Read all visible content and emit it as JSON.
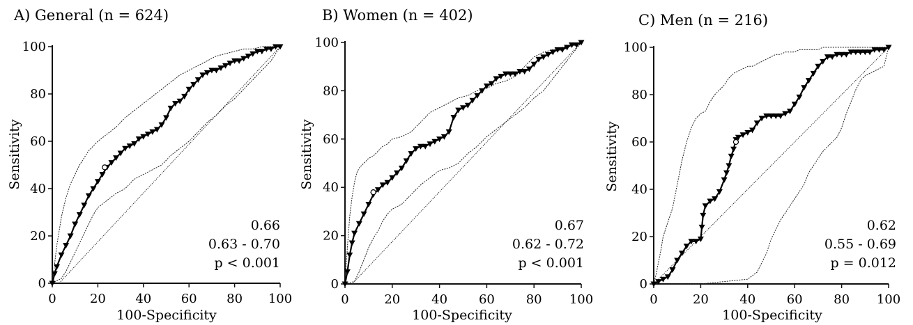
{
  "chart_data": [
    {
      "type": "line",
      "title": "A) General (n = 624)",
      "xlabel": "100-Specificity",
      "ylabel": "Sensitivity",
      "xlim": [
        0,
        100
      ],
      "ylim": [
        0,
        100
      ],
      "xticks": [
        "0",
        "20",
        "40",
        "60",
        "80",
        "100"
      ],
      "yticks": [
        "0",
        "20",
        "40",
        "60",
        "80",
        "100"
      ],
      "annotations": [
        "0.66",
        "0.63 - 0.70",
        "p < 0.001"
      ],
      "series": [
        {
          "role": "roc",
          "x": [
            0,
            1,
            2,
            4,
            6,
            8,
            10,
            12,
            14,
            16,
            18,
            20,
            22,
            24,
            26,
            28,
            30,
            32,
            34,
            36,
            38,
            40,
            42,
            44,
            46,
            48,
            50,
            52,
            54,
            56,
            58,
            60,
            62,
            64,
            66,
            68,
            70,
            72,
            74,
            76,
            78,
            80,
            82,
            84,
            86,
            88,
            90,
            92,
            94,
            96,
            98,
            100
          ],
          "y": [
            0,
            4,
            7,
            12,
            16,
            20,
            25,
            29,
            33,
            37,
            40,
            43,
            46,
            49,
            51,
            53,
            55,
            57,
            58,
            59,
            61,
            62,
            63,
            64,
            65,
            67,
            70,
            74,
            76,
            77,
            79,
            82,
            84,
            86,
            88,
            89,
            90,
            90,
            91,
            92,
            93,
            94,
            94,
            95,
            96,
            97,
            98,
            98,
            99,
            99,
            100,
            100
          ]
        },
        {
          "role": "upper-ci",
          "x": [
            0,
            1,
            2,
            3,
            4,
            5,
            6,
            8,
            10,
            12,
            14,
            16,
            18,
            20,
            24,
            28,
            32,
            36,
            40,
            44,
            48,
            52,
            56,
            60,
            64,
            68,
            72,
            76,
            80,
            84,
            88,
            92,
            96,
            100
          ],
          "y": [
            0,
            8,
            16,
            22,
            28,
            32,
            36,
            42,
            46,
            50,
            53,
            56,
            58,
            60,
            63,
            66,
            70,
            73,
            76,
            79,
            82,
            85,
            88,
            90,
            92,
            94,
            96,
            97,
            98,
            99,
            99,
            100,
            100,
            100
          ]
        },
        {
          "role": "lower-ci",
          "x": [
            0,
            4,
            6,
            8,
            10,
            12,
            14,
            16,
            18,
            20,
            24,
            28,
            32,
            36,
            40,
            44,
            48,
            52,
            56,
            60,
            64,
            68,
            72,
            76,
            80,
            84,
            88,
            92,
            96,
            100
          ],
          "y": [
            0,
            2,
            5,
            9,
            13,
            17,
            21,
            25,
            29,
            32,
            35,
            38,
            40,
            44,
            46,
            48,
            50,
            54,
            57,
            60,
            64,
            68,
            71,
            75,
            78,
            82,
            86,
            90,
            94,
            100
          ]
        },
        {
          "role": "reference",
          "x": [
            3,
            100
          ],
          "y": [
            0,
            100
          ]
        }
      ],
      "cutoff_marker": {
        "x": 23,
        "y": 49
      }
    },
    {
      "type": "line",
      "title": "B) Women (n = 402)",
      "xlabel": "100-Specificity",
      "ylabel": "Sensitivity",
      "xlim": [
        0,
        100
      ],
      "ylim": [
        0,
        100
      ],
      "xticks": [
        "0",
        "20",
        "40",
        "60",
        "80",
        "100"
      ],
      "yticks": [
        "0",
        "20",
        "40",
        "60",
        "80",
        "100"
      ],
      "annotations": [
        "0.67",
        "0.62 - 0.72",
        "p < 0.001"
      ],
      "series": [
        {
          "role": "roc",
          "x": [
            0,
            1,
            2,
            3,
            4,
            6,
            8,
            10,
            12,
            14,
            16,
            18,
            20,
            22,
            24,
            26,
            28,
            30,
            32,
            34,
            36,
            38,
            40,
            42,
            44,
            46,
            48,
            50,
            52,
            54,
            56,
            58,
            60,
            62,
            64,
            66,
            68,
            70,
            72,
            74,
            76,
            78,
            80,
            82,
            84,
            86,
            88,
            90,
            92,
            94,
            96,
            98,
            100
          ],
          "y": [
            0,
            5,
            12,
            17,
            21,
            25,
            29,
            33,
            37,
            39,
            41,
            42,
            44,
            46,
            48,
            51,
            54,
            56,
            57,
            57,
            58,
            59,
            60,
            61,
            63,
            69,
            72,
            73,
            74,
            76,
            78,
            80,
            82,
            83,
            85,
            86,
            87,
            87,
            87,
            88,
            88,
            89,
            91,
            93,
            94,
            95,
            96,
            97,
            97,
            98,
            99,
            99,
            100
          ]
        },
        {
          "role": "upper-ci",
          "x": [
            0,
            1,
            2,
            3,
            4,
            5,
            6,
            8,
            10,
            12,
            14,
            16,
            18,
            20,
            24,
            28,
            32,
            36,
            40,
            44,
            48,
            52,
            56,
            60,
            64,
            68,
            72,
            76,
            80,
            84,
            88,
            92,
            96,
            100
          ],
          "y": [
            0,
            15,
            28,
            36,
            42,
            46,
            48,
            50,
            52,
            53,
            55,
            57,
            58,
            60,
            61,
            63,
            67,
            71,
            73,
            75,
            77,
            78,
            80,
            81,
            83,
            84,
            86,
            90,
            94,
            96,
            97,
            98,
            99,
            100
          ]
        },
        {
          "role": "lower-ci",
          "x": [
            0,
            4,
            6,
            8,
            10,
            12,
            14,
            16,
            18,
            20,
            24,
            28,
            32,
            36,
            40,
            44,
            48,
            52,
            56,
            60,
            64,
            68,
            72,
            76,
            80,
            84,
            88,
            92,
            96,
            100
          ],
          "y": [
            0,
            1,
            5,
            10,
            15,
            19,
            22,
            26,
            29,
            31,
            33,
            37,
            41,
            44,
            47,
            48,
            50,
            54,
            57,
            61,
            64,
            67,
            70,
            73,
            77,
            80,
            85,
            90,
            95,
            100
          ]
        },
        {
          "role": "reference",
          "x": [
            3,
            100
          ],
          "y": [
            0,
            100
          ]
        }
      ],
      "cutoff_marker": {
        "x": 12,
        "y": 38
      }
    },
    {
      "type": "line",
      "title": "C) Men (n = 216)",
      "xlabel": "100-Specificity",
      "ylabel": "Sensitivity",
      "xlim": [
        0,
        100
      ],
      "ylim": [
        0,
        100
      ],
      "xticks": [
        "0",
        "20",
        "40",
        "60",
        "80",
        "100"
      ],
      "yticks": [
        "0",
        "20",
        "40",
        "60",
        "80",
        "100"
      ],
      "annotations": [
        "0.62",
        "0.55 - 0.69",
        "p = 0.012"
      ],
      "series": [
        {
          "role": "roc",
          "x": [
            0,
            2,
            4,
            6,
            8,
            10,
            12,
            14,
            16,
            18,
            20,
            20.5,
            21,
            22,
            24,
            26,
            28,
            30,
            31,
            32,
            33,
            34,
            35,
            36,
            38,
            40,
            42,
            44,
            46,
            48,
            50,
            52,
            54,
            56,
            58,
            60,
            62,
            64,
            66,
            68,
            70,
            72,
            74,
            76,
            78,
            80,
            82,
            84,
            86,
            88,
            90,
            92,
            94,
            96,
            98,
            100
          ],
          "y": [
            0,
            1,
            2,
            3,
            6,
            10,
            13,
            16,
            18,
            18,
            19,
            24,
            29,
            33,
            35,
            36,
            39,
            44,
            47,
            50,
            54,
            57,
            61,
            62,
            63,
            64,
            65,
            68,
            70,
            71,
            71,
            71,
            71,
            72,
            73,
            76,
            79,
            83,
            86,
            89,
            92,
            94,
            96,
            96,
            97,
            97,
            97,
            98,
            98,
            98,
            98,
            98,
            99,
            99,
            99,
            100
          ]
        },
        {
          "role": "upper-ci",
          "x": [
            0,
            1,
            2,
            3,
            4,
            6,
            8,
            10,
            12,
            14,
            16,
            18,
            20,
            22,
            24,
            26,
            28,
            30,
            32,
            34,
            36,
            38,
            40,
            42,
            44,
            46,
            48,
            50,
            52,
            54,
            56,
            58,
            60,
            62,
            64,
            66,
            68,
            70,
            72,
            74,
            76,
            78,
            80,
            84,
            88,
            92,
            96,
            100
          ],
          "y": [
            0,
            4,
            9,
            14,
            20,
            26,
            32,
            42,
            52,
            60,
            66,
            70,
            72,
            73,
            77,
            80,
            82,
            84,
            87,
            89,
            90,
            91,
            92,
            92,
            93,
            94,
            95,
            96,
            97,
            97,
            98,
            98,
            98,
            99,
            99,
            99,
            99,
            99,
            100,
            100,
            100,
            100,
            100,
            100,
            100,
            100,
            100,
            100
          ]
        },
        {
          "role": "lower-ci",
          "x": [
            0,
            10,
            20,
            30,
            40,
            44,
            46,
            48,
            50,
            52,
            54,
            56,
            58,
            60,
            62,
            64,
            66,
            68,
            70,
            72,
            74,
            76,
            78,
            80,
            82,
            84,
            86,
            88,
            90,
            92,
            94,
            96,
            98,
            100
          ],
          "y": [
            0,
            0,
            0,
            1,
            2,
            5,
            9,
            13,
            19,
            23,
            27,
            30,
            33,
            36,
            39,
            42,
            47,
            50,
            53,
            56,
            58,
            60,
            62,
            66,
            72,
            77,
            82,
            86,
            88,
            89,
            90,
            91,
            92,
            100
          ]
        },
        {
          "role": "reference",
          "x": [
            0,
            100
          ],
          "y": [
            0,
            100
          ]
        }
      ],
      "cutoff_marker": {
        "x": 35,
        "y": 60
      }
    }
  ]
}
